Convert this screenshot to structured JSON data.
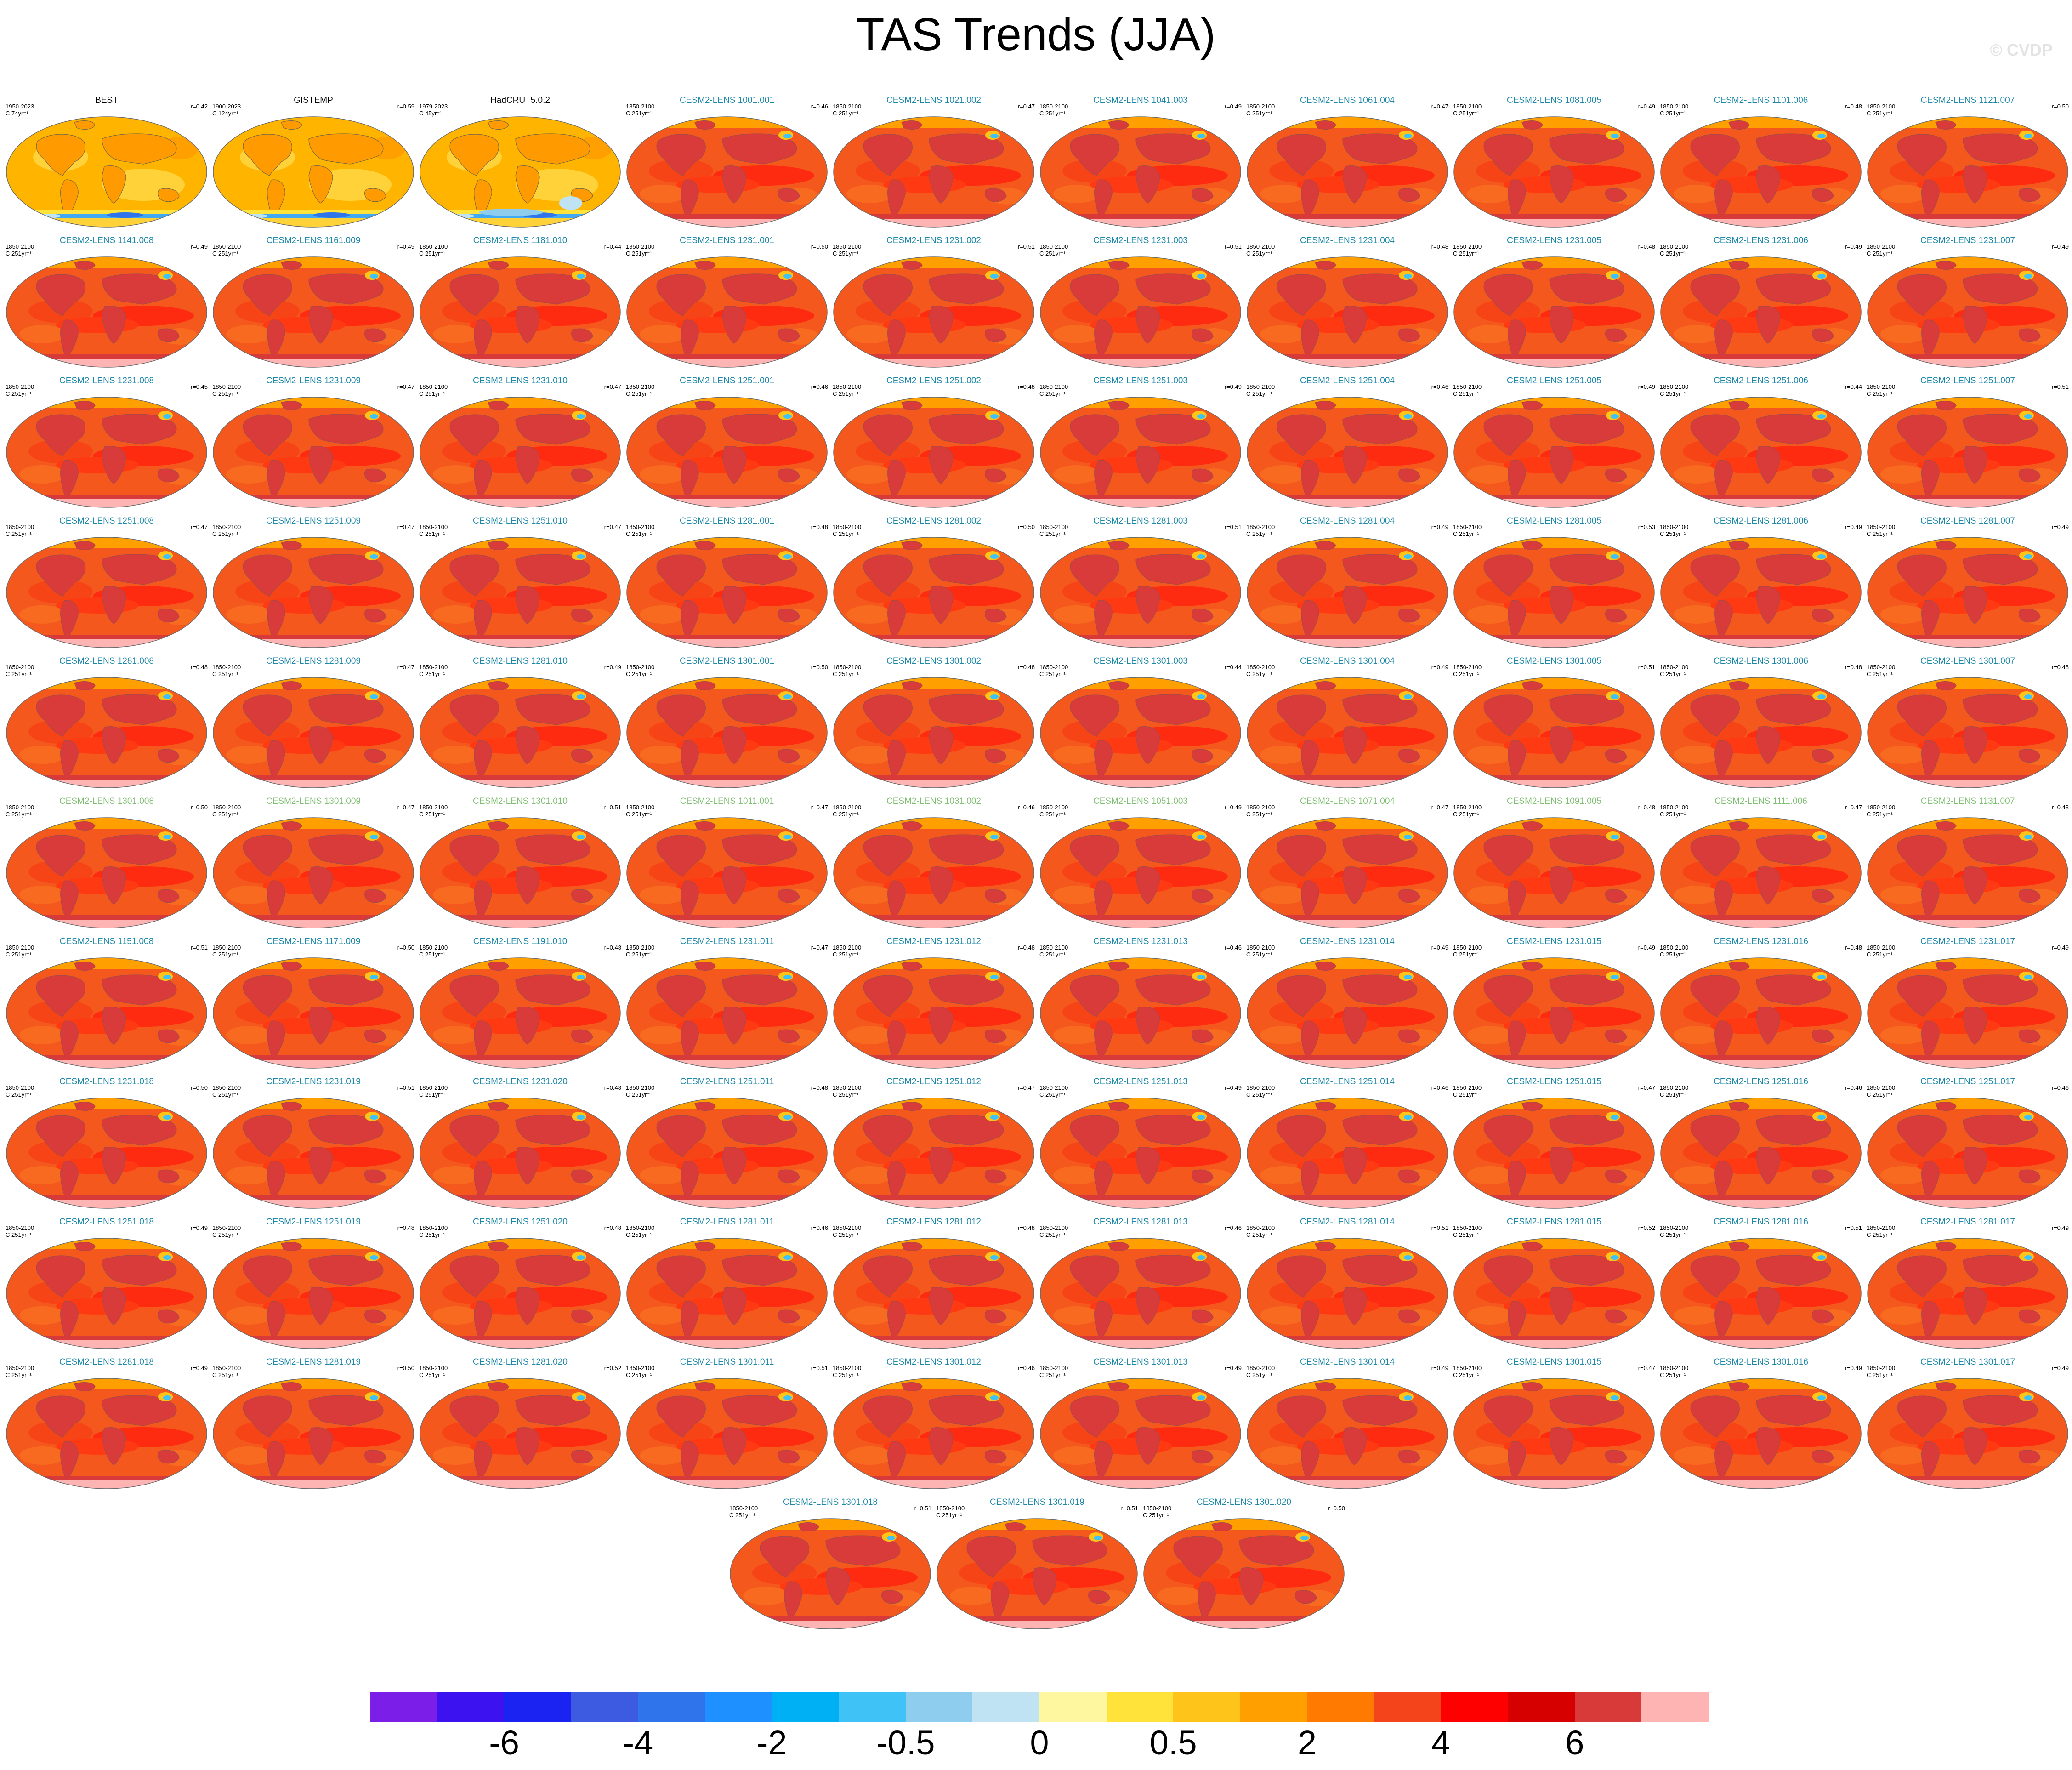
{
  "title": "TAS Trends (JJA)",
  "watermark": "© CVDP",
  "observations": [
    {
      "name": "BEST",
      "period": "1950-2023",
      "rate": "C 74yr⁻¹",
      "corr": "r=0.42"
    },
    {
      "name": "GISTEMP",
      "period": "1900-2023",
      "rate": "C 124yr⁻¹",
      "corr": "r=0.59"
    },
    {
      "name": "HadCRUT5.0.2",
      "period": "1979-2023",
      "rate": "C 45yr⁻¹",
      "corr": ""
    }
  ],
  "model_period": "1850-2100",
  "model_rate": "C 251yr⁻¹",
  "models": [
    {
      "name": "CESM2-LENS 1001.001",
      "corr": "r=0.46"
    },
    {
      "name": "CESM2-LENS 1021.002",
      "corr": "r=0.47"
    },
    {
      "name": "CESM2-LENS 1041.003",
      "corr": "r=0.49"
    },
    {
      "name": "CESM2-LENS 1061.004",
      "corr": "r=0.47"
    },
    {
      "name": "CESM2-LENS 1081.005",
      "corr": "r=0.49"
    },
    {
      "name": "CESM2-LENS 1101.006",
      "corr": "r=0.48"
    },
    {
      "name": "CESM2-LENS 1121.007",
      "corr": "r=0.50"
    },
    {
      "name": "CESM2-LENS 1141.008",
      "corr": "r=0.49"
    },
    {
      "name": "CESM2-LENS 1161.009",
      "corr": "r=0.49"
    },
    {
      "name": "CESM2-LENS 1181.010",
      "corr": "r=0.44"
    },
    {
      "name": "CESM2-LENS 1231.001",
      "corr": "r=0.50"
    },
    {
      "name": "CESM2-LENS 1231.002",
      "corr": "r=0.51"
    },
    {
      "name": "CESM2-LENS 1231.003",
      "corr": "r=0.51"
    },
    {
      "name": "CESM2-LENS 1231.004",
      "corr": "r=0.48"
    },
    {
      "name": "CESM2-LENS 1231.005",
      "corr": "r=0.48"
    },
    {
      "name": "CESM2-LENS 1231.006",
      "corr": "r=0.49"
    },
    {
      "name": "CESM2-LENS 1231.007",
      "corr": "r=0.49"
    },
    {
      "name": "CESM2-LENS 1231.008",
      "corr": "r=0.45"
    },
    {
      "name": "CESM2-LENS 1231.009",
      "corr": "r=0.47"
    },
    {
      "name": "CESM2-LENS 1231.010",
      "corr": "r=0.47"
    },
    {
      "name": "CESM2-LENS 1251.001",
      "corr": "r=0.46"
    },
    {
      "name": "CESM2-LENS 1251.002",
      "corr": "r=0.48"
    },
    {
      "name": "CESM2-LENS 1251.003",
      "corr": "r=0.49"
    },
    {
      "name": "CESM2-LENS 1251.004",
      "corr": "r=0.46"
    },
    {
      "name": "CESM2-LENS 1251.005",
      "corr": "r=0.49"
    },
    {
      "name": "CESM2-LENS 1251.006",
      "corr": "r=0.44"
    },
    {
      "name": "CESM2-LENS 1251.007",
      "corr": "r=0.51"
    },
    {
      "name": "CESM2-LENS 1251.008",
      "corr": "r=0.47"
    },
    {
      "name": "CESM2-LENS 1251.009",
      "corr": "r=0.47"
    },
    {
      "name": "CESM2-LENS 1251.010",
      "corr": "r=0.47"
    },
    {
      "name": "CESM2-LENS 1281.001",
      "corr": "r=0.48"
    },
    {
      "name": "CESM2-LENS 1281.002",
      "corr": "r=0.50"
    },
    {
      "name": "CESM2-LENS 1281.003",
      "corr": "r=0.51"
    },
    {
      "name": "CESM2-LENS 1281.004",
      "corr": "r=0.49"
    },
    {
      "name": "CESM2-LENS 1281.005",
      "corr": "r=0.53"
    },
    {
      "name": "CESM2-LENS 1281.006",
      "corr": "r=0.49"
    },
    {
      "name": "CESM2-LENS 1281.007",
      "corr": "r=0.49"
    },
    {
      "name": "CESM2-LENS 1281.008",
      "corr": "r=0.48"
    },
    {
      "name": "CESM2-LENS 1281.009",
      "corr": "r=0.47"
    },
    {
      "name": "CESM2-LENS 1281.010",
      "corr": "r=0.49"
    },
    {
      "name": "CESM2-LENS 1301.001",
      "corr": "r=0.50"
    },
    {
      "name": "CESM2-LENS 1301.002",
      "corr": "r=0.48"
    },
    {
      "name": "CESM2-LENS 1301.003",
      "corr": "r=0.44"
    },
    {
      "name": "CESM2-LENS 1301.004",
      "corr": "r=0.49"
    },
    {
      "name": "CESM2-LENS 1301.005",
      "corr": "r=0.51"
    },
    {
      "name": "CESM2-LENS 1301.006",
      "corr": "r=0.48"
    },
    {
      "name": "CESM2-LENS 1301.007",
      "corr": "r=0.48"
    },
    {
      "name": "CESM2-LENS 1301.008",
      "corr": "r=0.50"
    },
    {
      "name": "CESM2-LENS 1301.009",
      "corr": "r=0.47"
    },
    {
      "name": "CESM2-LENS 1301.010",
      "corr": "r=0.51"
    },
    {
      "name": "CESM2-LENS 1011.001",
      "corr": "r=0.47"
    },
    {
      "name": "CESM2-LENS 1031.002",
      "corr": "r=0.46"
    },
    {
      "name": "CESM2-LENS 1051.003",
      "corr": "r=0.49"
    },
    {
      "name": "CESM2-LENS 1071.004",
      "corr": "r=0.47"
    },
    {
      "name": "CESM2-LENS 1091.005",
      "corr": "r=0.48"
    },
    {
      "name": "CESM2-LENS 1111.006",
      "corr": "r=0.47"
    },
    {
      "name": "CESM2-LENS 1131.007",
      "corr": "r=0.48"
    },
    {
      "name": "CESM2-LENS 1151.008",
      "corr": "r=0.51"
    },
    {
      "name": "CESM2-LENS 1171.009",
      "corr": "r=0.50"
    },
    {
      "name": "CESM2-LENS 1191.010",
      "corr": "r=0.48"
    },
    {
      "name": "CESM2-LENS 1231.011",
      "corr": "r=0.47"
    },
    {
      "name": "CESM2-LENS 1231.012",
      "corr": "r=0.48"
    },
    {
      "name": "CESM2-LENS 1231.013",
      "corr": "r=0.46"
    },
    {
      "name": "CESM2-LENS 1231.014",
      "corr": "r=0.49"
    },
    {
      "name": "CESM2-LENS 1231.015",
      "corr": "r=0.49"
    },
    {
      "name": "CESM2-LENS 1231.016",
      "corr": "r=0.48"
    },
    {
      "name": "CESM2-LENS 1231.017",
      "corr": "r=0.49"
    },
    {
      "name": "CESM2-LENS 1231.018",
      "corr": "r=0.50"
    },
    {
      "name": "CESM2-LENS 1231.019",
      "corr": "r=0.51"
    },
    {
      "name": "CESM2-LENS 1231.020",
      "corr": "r=0.48"
    },
    {
      "name": "CESM2-LENS 1251.011",
      "corr": "r=0.48"
    },
    {
      "name": "CESM2-LENS 1251.012",
      "corr": "r=0.47"
    },
    {
      "name": "CESM2-LENS 1251.013",
      "corr": "r=0.49"
    },
    {
      "name": "CESM2-LENS 1251.014",
      "corr": "r=0.46"
    },
    {
      "name": "CESM2-LENS 1251.015",
      "corr": "r=0.47"
    },
    {
      "name": "CESM2-LENS 1251.016",
      "corr": "r=0.46"
    },
    {
      "name": "CESM2-LENS 1251.017",
      "corr": "r=0.46"
    },
    {
      "name": "CESM2-LENS 1251.018",
      "corr": "r=0.49"
    },
    {
      "name": "CESM2-LENS 1251.019",
      "corr": "r=0.48"
    },
    {
      "name": "CESM2-LENS 1251.020",
      "corr": "r=0.48"
    },
    {
      "name": "CESM2-LENS 1281.011",
      "corr": "r=0.46"
    },
    {
      "name": "CESM2-LENS 1281.012",
      "corr": "r=0.48"
    },
    {
      "name": "CESM2-LENS 1281.013",
      "corr": "r=0.46"
    },
    {
      "name": "CESM2-LENS 1281.014",
      "corr": "r=0.51"
    },
    {
      "name": "CESM2-LENS 1281.015",
      "corr": "r=0.52"
    },
    {
      "name": "CESM2-LENS 1281.016",
      "corr": "r=0.51"
    },
    {
      "name": "CESM2-LENS 1281.017",
      "corr": "r=0.49"
    },
    {
      "name": "CESM2-LENS 1281.018",
      "corr": "r=0.49"
    },
    {
      "name": "CESM2-LENS 1281.019",
      "corr": "r=0.50"
    },
    {
      "name": "CESM2-LENS 1281.020",
      "corr": "r=0.52"
    },
    {
      "name": "CESM2-LENS 1301.011",
      "corr": "r=0.51"
    },
    {
      "name": "CESM2-LENS 1301.012",
      "corr": "r=0.46"
    },
    {
      "name": "CESM2-LENS 1301.013",
      "corr": "r=0.49"
    },
    {
      "name": "CESM2-LENS 1301.014",
      "corr": "r=0.49"
    },
    {
      "name": "CESM2-LENS 1301.015",
      "corr": "r=0.47"
    },
    {
      "name": "CESM2-LENS 1301.016",
      "corr": "r=0.49"
    },
    {
      "name": "CESM2-LENS 1301.017",
      "corr": "r=0.49"
    },
    {
      "name": "CESM2-LENS 1301.018",
      "corr": "r=0.51"
    },
    {
      "name": "CESM2-LENS 1301.019",
      "corr": "r=0.51"
    },
    {
      "name": "CESM2-LENS 1301.020",
      "corr": "r=0.50"
    }
  ],
  "colors": {
    "model_title": "#1e88a8",
    "model_title_alt": "#7fbf72",
    "ocean_obs": "#ffb400",
    "ocean_model": "#f4581c",
    "land_model": "#d93a3a"
  },
  "colorbar": {
    "colors": [
      "#7b1fe8",
      "#3c12f0",
      "#1b23f2",
      "#3c5be0",
      "#2f74ea",
      "#1e90ff",
      "#00b0f5",
      "#3fc3f7",
      "#8ecdee",
      "#bfe3f3",
      "#fff7a0",
      "#ffe23a",
      "#ffc41a",
      "#ffa000",
      "#ff7a00",
      "#f4441c",
      "#ff0000",
      "#d60000",
      "#d83a3a",
      "#ffb4b4"
    ],
    "labels": [
      "-6",
      "-4",
      "-2",
      "-0.5",
      "0",
      "0.5",
      "2",
      "4",
      "6"
    ],
    "label_boundaries": [
      2,
      4,
      6,
      8,
      10,
      12,
      14,
      16,
      18
    ]
  }
}
